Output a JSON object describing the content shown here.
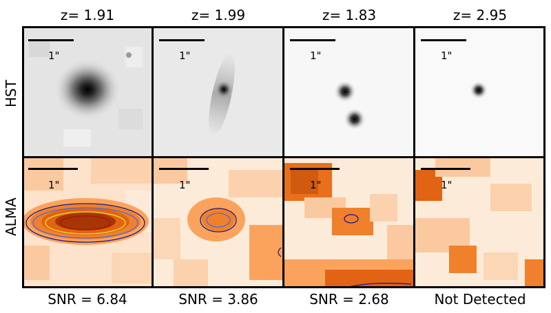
{
  "columns": [
    {
      "redshift": "z= 1.91",
      "snr": "SNR = 6.84"
    },
    {
      "redshift": "z= 1.99",
      "snr": "SNR = 3.86"
    },
    {
      "redshift": "z= 1.83",
      "snr": "SNR = 2.68"
    },
    {
      "redshift": "z= 2.95",
      "snr": "Not Detected"
    }
  ],
  "rows": {
    "hst_label": "HST",
    "alma_label": "ALMA"
  },
  "scale_label": "1\""
}
